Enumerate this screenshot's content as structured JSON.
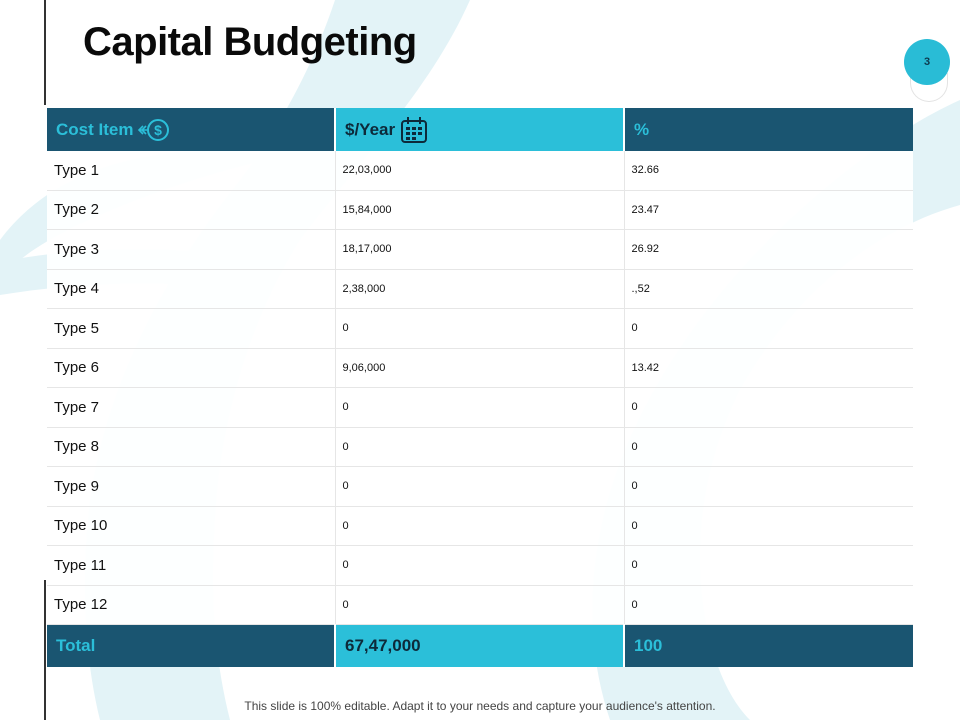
{
  "slide": {
    "title": "Capital Budgeting",
    "page_number": "3",
    "footer": "This slide is 100% editable. Adapt it to your needs and capture your audience's attention."
  },
  "colors": {
    "dark_teal": "#1a5571",
    "cyan": "#2bbfd9",
    "background_shape": "#e3f3f7"
  },
  "table": {
    "headers": [
      {
        "label": "Cost Item",
        "icon": "dollar-arrow-icon"
      },
      {
        "label": "$/Year",
        "icon": "calendar-icon"
      },
      {
        "label": "%",
        "icon": ""
      }
    ],
    "rows": [
      {
        "item": "Type 1",
        "per_year": "22,03,000",
        "percent": "32.66"
      },
      {
        "item": "Type 2",
        "per_year": "15,84,000",
        "percent": "23.47"
      },
      {
        "item": "Type 3",
        "per_year": "18,17,000",
        "percent": "26.92"
      },
      {
        "item": "Type 4",
        "per_year": "2,38,000",
        "percent": ".,52"
      },
      {
        "item": "Type 5",
        "per_year": "0",
        "percent": "0"
      },
      {
        "item": "Type 6",
        "per_year": "9,06,000",
        "percent": "13.42"
      },
      {
        "item": "Type 7",
        "per_year": "0",
        "percent": "0"
      },
      {
        "item": "Type 8",
        "per_year": "0",
        "percent": "0"
      },
      {
        "item": "Type 9",
        "per_year": "0",
        "percent": "0"
      },
      {
        "item": "Type 10",
        "per_year": "0",
        "percent": "0"
      },
      {
        "item": "Type 11",
        "per_year": "0",
        "percent": "0"
      },
      {
        "item": "Type 12",
        "per_year": "0",
        "percent": "0"
      }
    ],
    "total": {
      "label": "Total",
      "per_year": "67,47,000",
      "percent": "100"
    }
  }
}
